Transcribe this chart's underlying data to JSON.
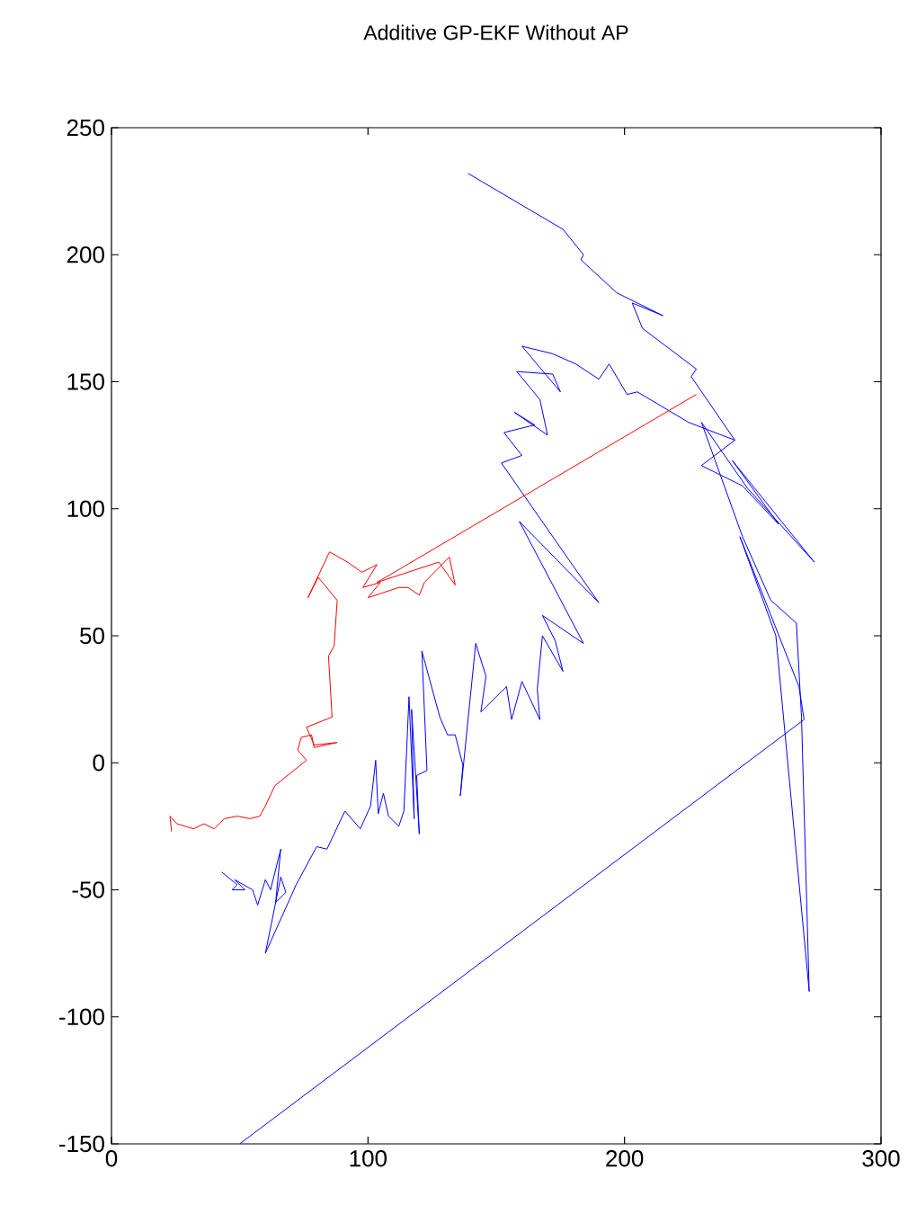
{
  "chart_data": {
    "type": "line",
    "title": "Additive GP-EKF Without AP",
    "xlim": [
      0,
      300
    ],
    "ylim": [
      -150,
      250
    ],
    "xticks": [
      0,
      100,
      200,
      300
    ],
    "yticks": [
      -150,
      -100,
      -50,
      0,
      50,
      100,
      150,
      200,
      250
    ],
    "grid": false,
    "series": [
      {
        "color": "#0000ff",
        "x": [
          139,
          176,
          184,
          183,
          197,
          215,
          203,
          207,
          228,
          226,
          243,
          230,
          246,
          260,
          242,
          274,
          248,
          230,
          246,
          257,
          267,
          269,
          272,
          259,
          245,
          268,
          270,
          50,
          null,
          43,
          49,
          47,
          52,
          48,
          55,
          57,
          60,
          62,
          66,
          64,
          68,
          66,
          60,
          72,
          80,
          84,
          91,
          97,
          101,
          103,
          104,
          106,
          108,
          112,
          114,
          116,
          118,
          117,
          120,
          119,
          123,
          121,
          128,
          131,
          134,
          137,
          136,
          142,
          146,
          144,
          154,
          156,
          160,
          167,
          166,
          168,
          176,
          173,
          168,
          184,
          159,
          190,
          152,
          160,
          153,
          165,
          157,
          170,
          167,
          158,
          172,
          175,
          160,
          172,
          181,
          190,
          194,
          201,
          205,
          225,
          243
        ],
        "values": [
          232,
          210,
          200,
          198,
          185,
          176,
          181,
          171,
          155,
          152,
          127,
          117,
          109,
          94,
          119,
          79,
          108,
          134,
          89,
          64,
          55,
          18,
          -90,
          50,
          89,
          30,
          17,
          -150,
          null,
          -43,
          -48,
          -50,
          -50,
          -46,
          -50,
          -56,
          -46,
          -50,
          -34,
          -55,
          -51,
          -45,
          -75,
          -48,
          -33,
          -34,
          -19,
          -26,
          -17,
          1,
          -20,
          -12,
          -21,
          -25,
          -19,
          26,
          -22,
          21,
          -28,
          -5,
          -3,
          44,
          18,
          11,
          11,
          -1,
          -13,
          47,
          34,
          20,
          30,
          17,
          32,
          17,
          29,
          50,
          36,
          48,
          58,
          47,
          95,
          63,
          118,
          121,
          130,
          133,
          138,
          129,
          143,
          154,
          153,
          146,
          164,
          161,
          157,
          151,
          157,
          145,
          146,
          134,
          127
        ]
      },
      {
        "color": "#ff0000",
        "x": [
          23.4,
          22.8,
          25.5,
          32,
          36,
          40,
          44,
          49,
          54,
          57.8,
          60,
          63.7,
          76,
          72.6,
          74,
          78,
          79,
          88,
          79,
          76,
          86,
          84.6,
          86.8,
          88,
          80.6,
          76.6,
          85,
          92,
          97.6,
          103.5,
          98,
          104.8,
          100,
          112,
          115.6,
          120,
          122,
          131.7,
          134,
          127.6,
          103.5,
          228
        ],
        "values": [
          -27,
          -21,
          -24,
          -26,
          -24,
          -26,
          -22,
          -21,
          -22,
          -21,
          -17,
          -9,
          1,
          5,
          10,
          11,
          6,
          8,
          7,
          14,
          18,
          42,
          46,
          64,
          73,
          65,
          83,
          79,
          75,
          78,
          69,
          71,
          65,
          69,
          69,
          66,
          71,
          81,
          70,
          79,
          71,
          145
        ]
      }
    ]
  }
}
